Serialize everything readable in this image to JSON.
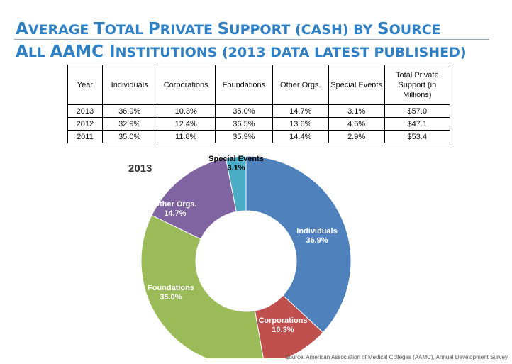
{
  "title": {
    "line1": [
      {
        "cap": "A",
        "rest": "VERAGE "
      },
      {
        "cap": "T",
        "rest": "OTAL "
      },
      {
        "cap": "P",
        "rest": "RIVATE "
      },
      {
        "cap": "S",
        "rest": "UPPORT (CASH) BY "
      },
      {
        "cap": "S",
        "rest": "OURCE"
      }
    ],
    "line2": [
      {
        "cap": "A",
        "rest": "LL "
      },
      {
        "cap": "AAMC ",
        "rest": ""
      },
      {
        "cap": "I",
        "rest": "NSTITUTIONS (2013 DATA LATEST PUBLISHED)"
      }
    ]
  },
  "table": {
    "headers": [
      "Year",
      "Individuals",
      "Corporations",
      "Foundations",
      "Other Orgs.",
      "Special Events",
      "Total Private Support (in Millions)"
    ],
    "rows": [
      [
        "2013",
        "36.9%",
        "10.3%",
        "35.0%",
        "14.7%",
        "3.1%",
        "$57.0"
      ],
      [
        "2012",
        "32.9%",
        "12.4%",
        "36.5%",
        "13.6%",
        "4.6%",
        "$47.1"
      ],
      [
        "2011",
        "35.0%",
        "11.8%",
        "35.9%",
        "14.4%",
        "2.9%",
        "$53.4"
      ]
    ]
  },
  "chart_data": {
    "type": "pie",
    "title": "2013",
    "slices": [
      {
        "label": "Individuals",
        "value": 36.9,
        "value_label": "36.9%",
        "color": "#4f81bd"
      },
      {
        "label": "Corporations",
        "value": 10.3,
        "value_label": "10.3%",
        "color": "#c0504d"
      },
      {
        "label": "Foundations",
        "value": 35.0,
        "value_label": "35.0%",
        "color": "#9bbb59"
      },
      {
        "label": "Other Orgs.",
        "value": 14.7,
        "value_label": "14.7%",
        "color": "#8064a2"
      },
      {
        "label": "Special Events",
        "value": 3.1,
        "value_label": "3.1%",
        "color": "#4bacc6"
      }
    ]
  },
  "source": "Source: American Association of Medical Colleges (AAMC), Annual Development Survey"
}
